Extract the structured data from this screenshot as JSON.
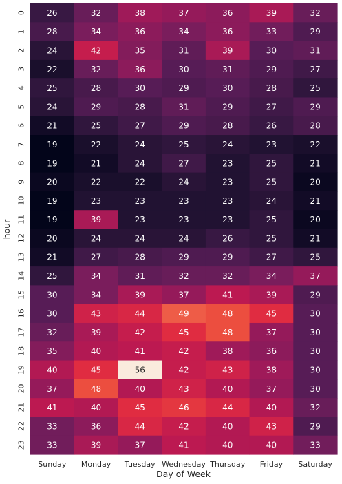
{
  "chart_data": {
    "type": "heatmap",
    "xlabel": "Day of Week",
    "ylabel": "hour",
    "x_categories": [
      "Sunday",
      "Monday",
      "Tuesday",
      "Wednesday",
      "Thursday",
      "Friday",
      "Saturday"
    ],
    "y_categories": [
      "0",
      "1",
      "2",
      "3",
      "4",
      "5",
      "6",
      "7",
      "8",
      "9",
      "10",
      "11",
      "12",
      "13",
      "14",
      "15",
      "16",
      "17",
      "18",
      "19",
      "20",
      "21",
      "22",
      "23"
    ],
    "values": [
      [
        26,
        32,
        38,
        37,
        36,
        39,
        32
      ],
      [
        28,
        34,
        36,
        34,
        36,
        33,
        29
      ],
      [
        24,
        42,
        35,
        31,
        39,
        30,
        31
      ],
      [
        22,
        32,
        36,
        30,
        31,
        29,
        27
      ],
      [
        25,
        28,
        30,
        29,
        30,
        28,
        25
      ],
      [
        24,
        29,
        28,
        31,
        29,
        27,
        29
      ],
      [
        21,
        25,
        27,
        29,
        28,
        26,
        28
      ],
      [
        19,
        22,
        24,
        25,
        24,
        23,
        22
      ],
      [
        19,
        21,
        24,
        27,
        23,
        25,
        21
      ],
      [
        20,
        22,
        22,
        24,
        23,
        25,
        20
      ],
      [
        19,
        23,
        23,
        23,
        23,
        24,
        21
      ],
      [
        19,
        39,
        23,
        23,
        23,
        25,
        20
      ],
      [
        20,
        24,
        24,
        24,
        26,
        25,
        21
      ],
      [
        21,
        27,
        28,
        29,
        29,
        27,
        25
      ],
      [
        25,
        34,
        31,
        32,
        32,
        34,
        37
      ],
      [
        30,
        34,
        39,
        37,
        41,
        39,
        29
      ],
      [
        30,
        43,
        44,
        49,
        48,
        45,
        30
      ],
      [
        32,
        39,
        42,
        45,
        48,
        37,
        30
      ],
      [
        35,
        40,
        41,
        42,
        38,
        36,
        30
      ],
      [
        40,
        45,
        56,
        42,
        43,
        38,
        30
      ],
      [
        37,
        48,
        40,
        43,
        40,
        37,
        30
      ],
      [
        41,
        40,
        45,
        46,
        44,
        40,
        32
      ],
      [
        33,
        36,
        44,
        42,
        40,
        43,
        29
      ],
      [
        33,
        39,
        37,
        41,
        40,
        40,
        33
      ]
    ],
    "value_range": [
      19,
      56
    ],
    "colormap": "rocket",
    "annotations": true,
    "grid": false,
    "legend": "none"
  }
}
